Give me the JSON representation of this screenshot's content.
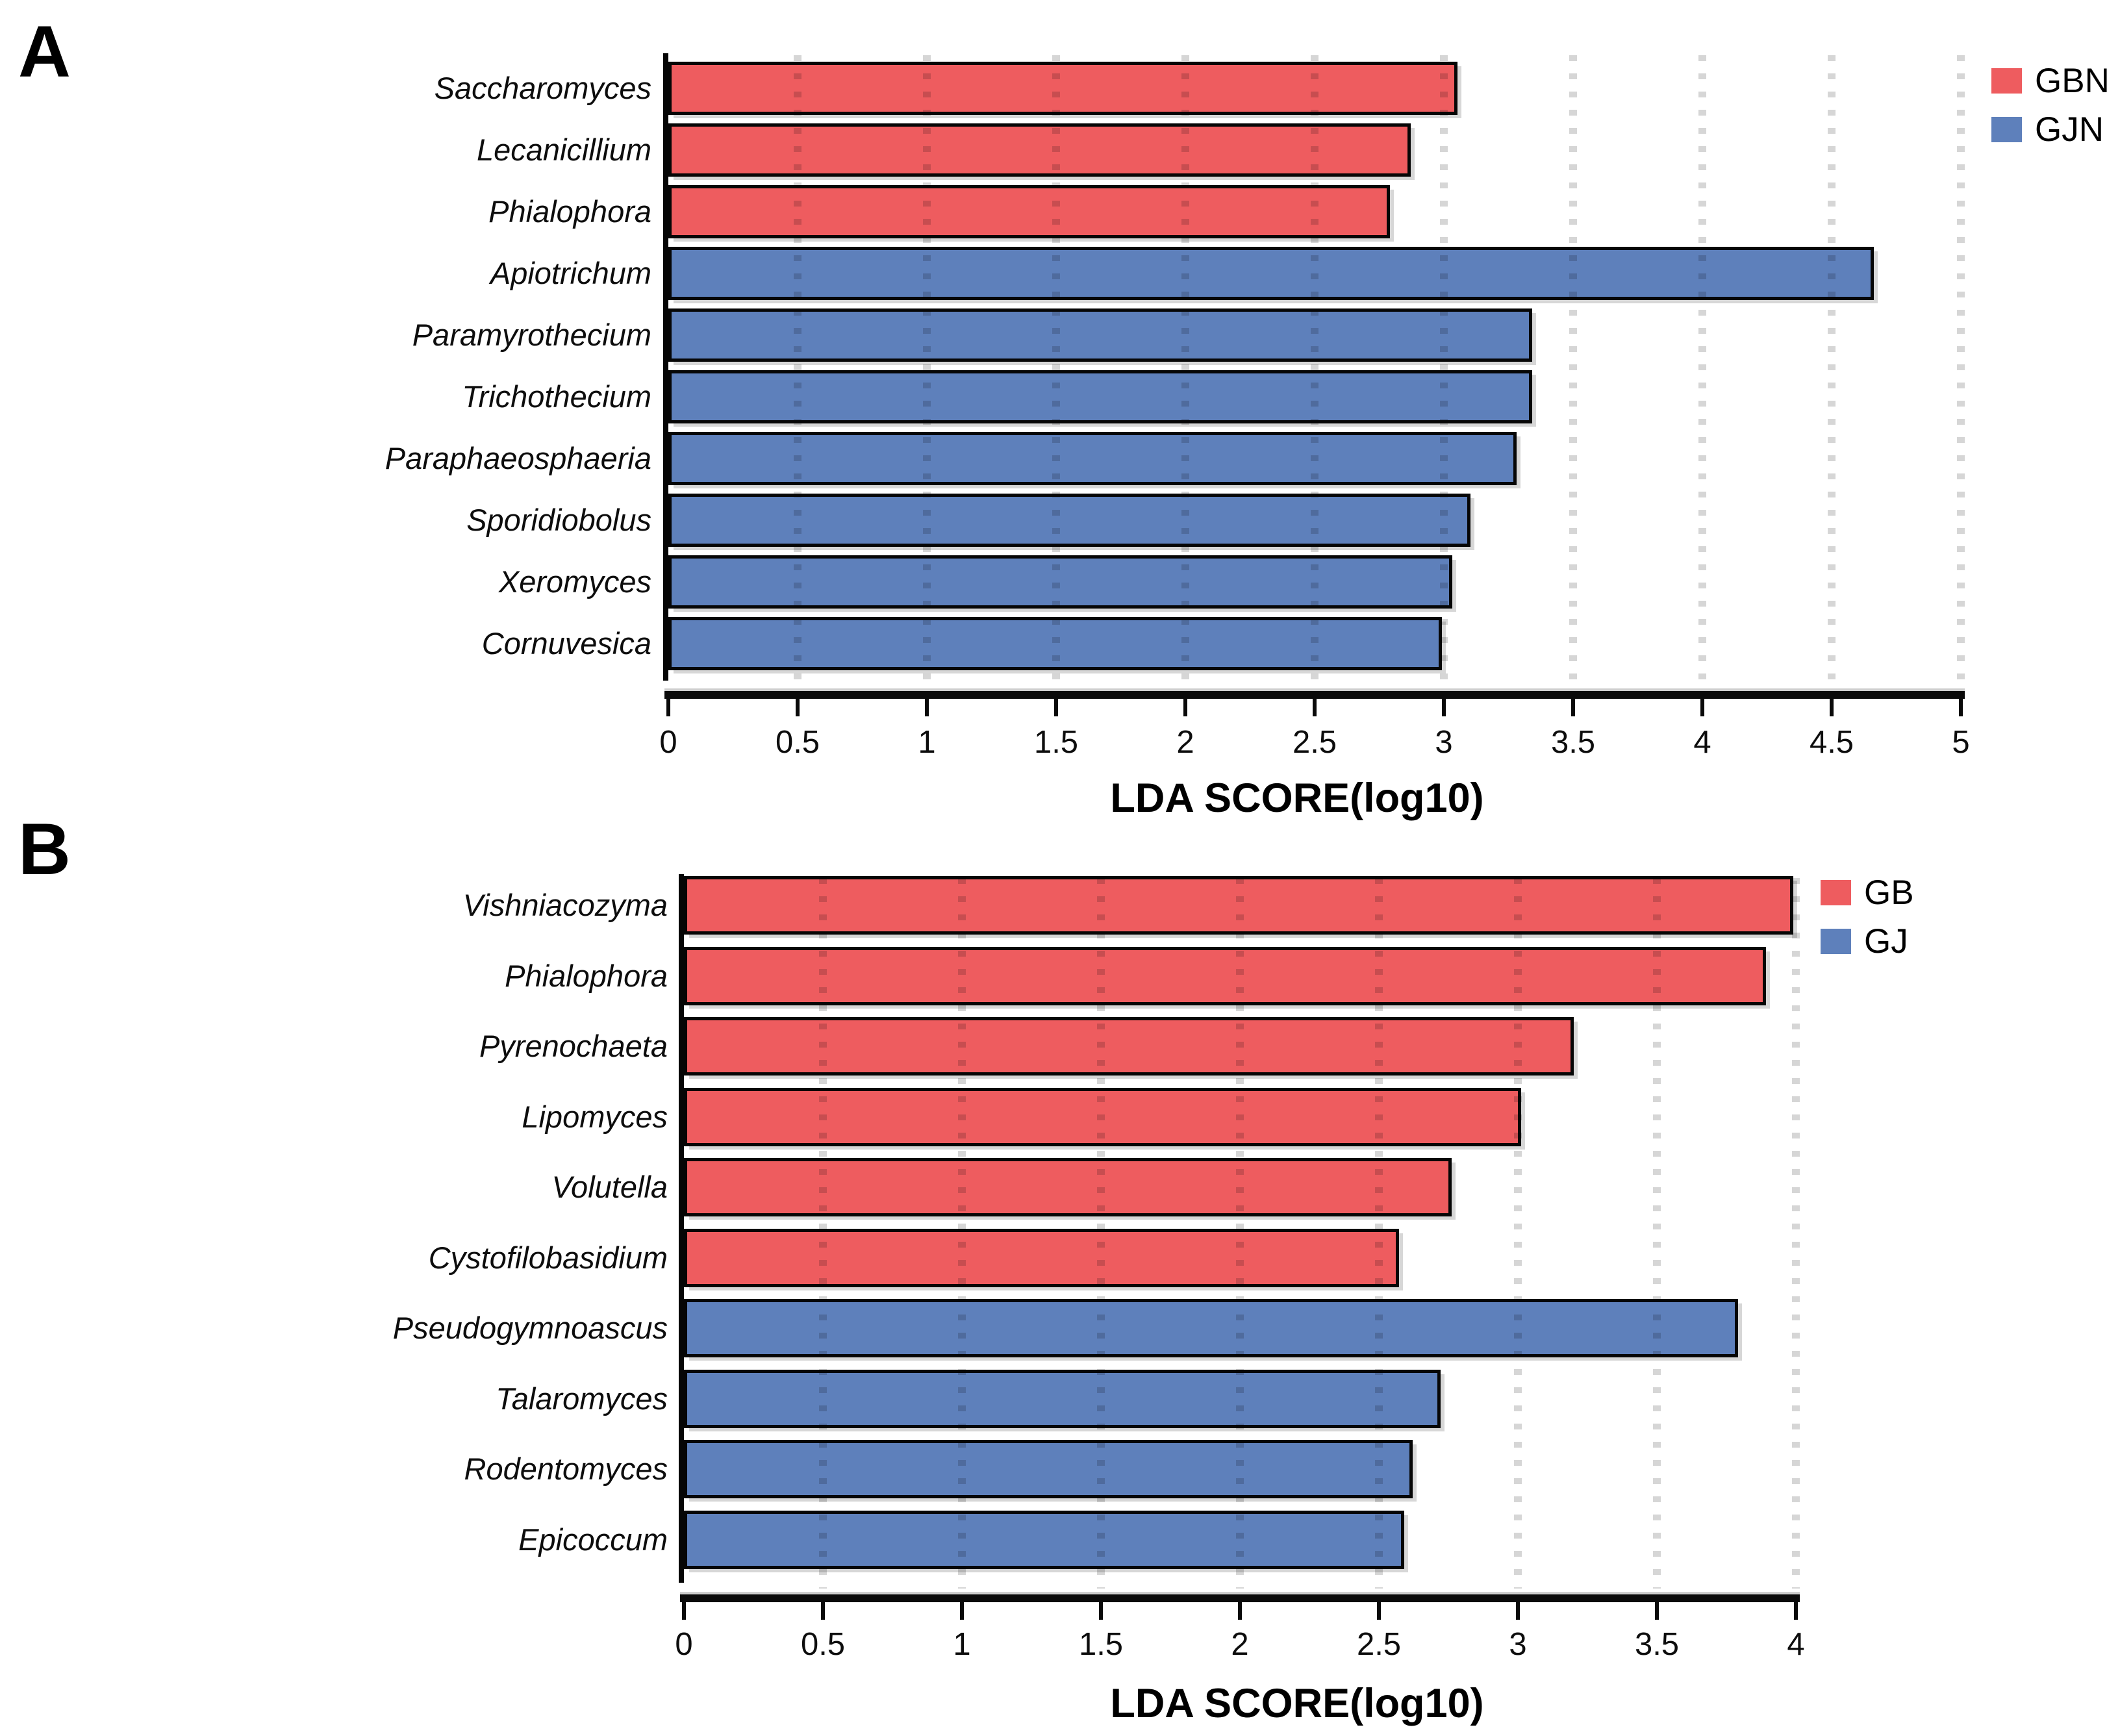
{
  "figure": {
    "background": "#ffffff",
    "colors": {
      "red": "#EE5C5F",
      "blue": "#5E80BB",
      "bar_border": "#060606",
      "gridline": "#D6D6D6",
      "axis": "#0a0a0a"
    }
  },
  "chart_data": [
    {
      "type": "bar",
      "panel_letter": "A",
      "orientation": "horizontal",
      "title": "",
      "xlabel": "LDA SCORE(log10)",
      "ylabel": "",
      "xlim": [
        0,
        5
      ],
      "xtick_step": 0.5,
      "grid": "vertical-dashed-every-0.5",
      "legend_position": "top-right",
      "categories": [
        "Saccharomyces",
        "Lecanicillium",
        "Phialophora",
        "Apiotrichum",
        "Paramyrothecium",
        "Trichothecium",
        "Paraphaeosphaeria",
        "Sporidiobolus",
        "Xeromyces",
        "Cornuvesica"
      ],
      "values": [
        3.04,
        2.86,
        2.78,
        4.65,
        3.33,
        3.33,
        3.27,
        3.09,
        3.02,
        2.98
      ],
      "groups": [
        "GBN",
        "GBN",
        "GBN",
        "GJN",
        "GJN",
        "GJN",
        "GJN",
        "GJN",
        "GJN",
        "GJN"
      ],
      "legend": [
        {
          "label": "GBN",
          "color": "#EE5C5F"
        },
        {
          "label": "GJN",
          "color": "#5E80BB"
        }
      ]
    },
    {
      "type": "bar",
      "panel_letter": "B",
      "orientation": "horizontal",
      "title": "",
      "xlabel": "LDA SCORE(log10)",
      "ylabel": "",
      "xlim": [
        0,
        4
      ],
      "xtick_step": 0.5,
      "grid": "vertical-dashed-every-0.5",
      "legend_position": "top-right",
      "categories": [
        "Vishniacozyma",
        "Phialophora",
        "Pyrenochaeta",
        "Lipomyces",
        "Volutella",
        "Cystofilobasidium",
        "Pseudogymnoascus",
        "Talaromyces",
        "Rodentomyces",
        "Epicoccum"
      ],
      "values": [
        3.98,
        3.88,
        3.19,
        3.0,
        2.75,
        2.56,
        3.78,
        2.71,
        2.61,
        2.58
      ],
      "groups": [
        "GB",
        "GB",
        "GB",
        "GB",
        "GB",
        "GB",
        "GJ",
        "GJ",
        "GJ",
        "GJ"
      ],
      "legend": [
        {
          "label": "GB",
          "color": "#EE5C5F"
        },
        {
          "label": "GJ",
          "color": "#5E80BB"
        }
      ]
    }
  ]
}
